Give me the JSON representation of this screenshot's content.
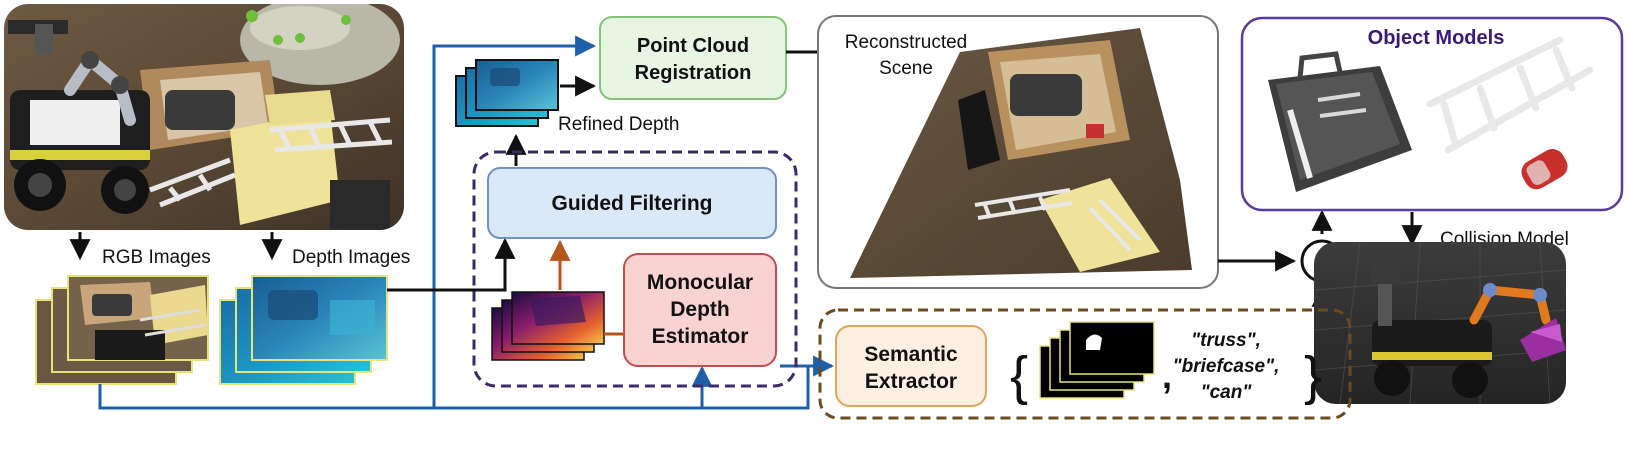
{
  "labels": {
    "rgb_images": "RGB Images",
    "depth_images": "Depth Images",
    "refined_depth": "Refined Depth",
    "point_cloud_registration_line1": "Point Cloud",
    "point_cloud_registration_line2": "Registration",
    "guided_filtering": "Guided Filtering",
    "monocular_line1": "Monocular",
    "monocular_line2": "Depth",
    "monocular_line3": "Estimator",
    "reconstructed_line1": "Reconstructed",
    "reconstructed_line2": "Scene",
    "object_models": "Object Models",
    "collision_model": "Collision Model",
    "semantic_line1": "Semantic",
    "semantic_line2": "Extractor",
    "truss": "\"truss\",",
    "briefcase": "\"briefcase\",",
    "can": "\"can\"",
    "brace_open": "{",
    "brace_close": "}",
    "comma": ",",
    "plus": "+"
  },
  "colors": {
    "blue_line": "#1f5fa8",
    "orange_arrow": "#b5561c",
    "green_box_fill": "#e7f5e3",
    "green_box_stroke": "#88c27a",
    "blue_box_fill": "#dbe8f8",
    "blue_box_stroke": "#6f93c5",
    "red_box_fill": "#f8d3d1",
    "red_box_stroke": "#c0504d",
    "cream_box_fill": "#fdf0e2",
    "cream_box_stroke": "#e0a45a",
    "purple_dash": "#3e2a6b",
    "brown_dash": "#6b4a1e",
    "purple_title": "#3a1a78"
  }
}
